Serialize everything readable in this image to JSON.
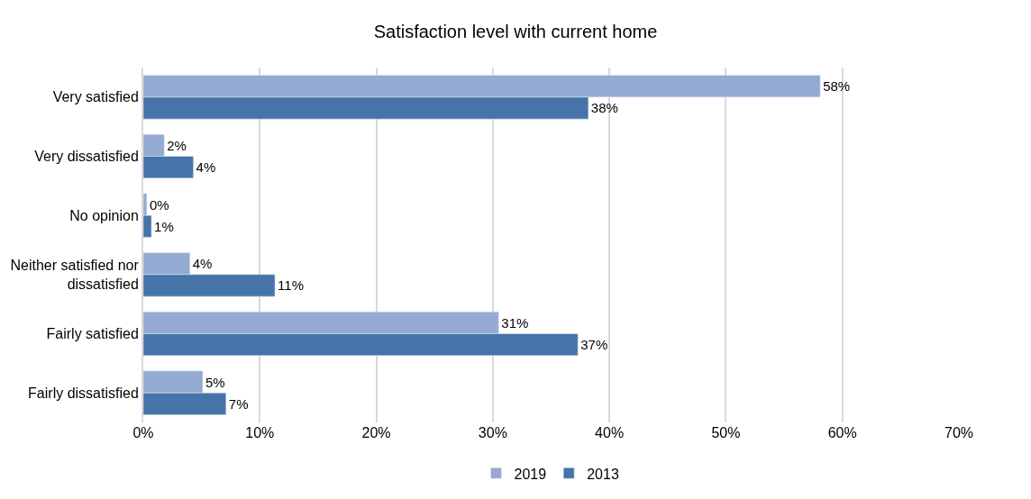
{
  "chart_data": {
    "type": "bar",
    "orientation": "horizontal",
    "title": "Satisfaction level with current home",
    "categories": [
      "Very satisfied",
      "Very dissatisfied",
      "No opinion",
      "Neither satisfied nor dissatisfied",
      "Fairly satisfied",
      "Fairly dissatisfied"
    ],
    "series": [
      {
        "name": "2019",
        "color": "#95aad2",
        "values": [
          58.1,
          1.8,
          0.3,
          4.0,
          30.5,
          5.1
        ],
        "value_labels": [
          "58%",
          "2%",
          "0%",
          "4%",
          "31%",
          "5%"
        ]
      },
      {
        "name": "2013",
        "color": "#4674a8",
        "values": [
          38.2,
          4.3,
          0.7,
          11.3,
          37.3,
          7.1
        ],
        "value_labels": [
          "38%",
          "4%",
          "1%",
          "11%",
          "37%",
          "7%"
        ]
      }
    ],
    "xlim": [
      0,
      70
    ],
    "xticks": [
      {
        "value": 0,
        "label": "0%"
      },
      {
        "value": 10,
        "label": "10%"
      },
      {
        "value": 20,
        "label": "20%"
      },
      {
        "value": 30,
        "label": "30%"
      },
      {
        "value": 40,
        "label": "40%"
      },
      {
        "value": 50,
        "label": "50%"
      },
      {
        "value": 60,
        "label": "60%"
      },
      {
        "value": 70,
        "label": "70%"
      }
    ],
    "grid": "x",
    "legend": "bottom"
  }
}
